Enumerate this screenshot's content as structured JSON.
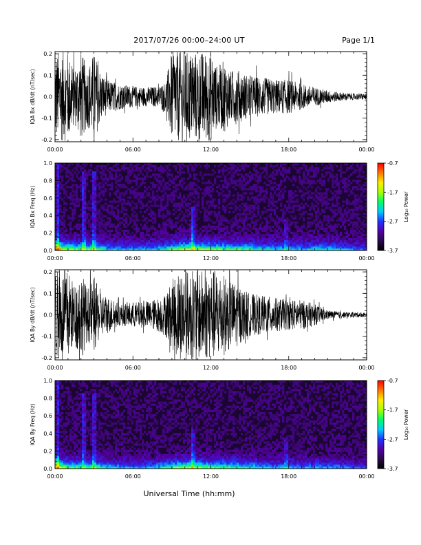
{
  "header": {
    "title": "2017/07/26  00:00–24:00 UT",
    "page": "Page 1/1"
  },
  "footer": {
    "xlabel": "Universal Time (hh:mm)"
  },
  "colors": {
    "background": "#ffffff",
    "trace": "#000000",
    "spec_background": "#1a0630"
  },
  "colorbar": {
    "label": "Log₁₀ Power",
    "ticks": [
      "-0.7",
      "-1.7",
      "-2.7",
      "-3.7"
    ],
    "range": [
      -3.7,
      -0.7
    ],
    "colors": [
      "#000000",
      "#2a0a4a",
      "#5500aa",
      "#2233ff",
      "#00ccff",
      "#00ff66",
      "#aaff00",
      "#ffee00",
      "#ff7700",
      "#ff0000"
    ]
  },
  "chart_data": [
    {
      "type": "line",
      "title": "",
      "xlabel": "",
      "ylabel": "IQA Bx dB/dt (nT/sec)",
      "xlim": [
        0,
        24
      ],
      "ylim": [
        -0.21,
        0.21
      ],
      "xticks": [
        "00:00",
        "06:00",
        "12:00",
        "18:00",
        "00:00"
      ],
      "yticks": [
        "0.2",
        "0.1",
        "0.0",
        "-0.1",
        "-0.2"
      ],
      "envelope": {
        "hours": [
          0,
          0.5,
          1,
          1.5,
          2,
          2.5,
          3,
          3.5,
          4,
          5,
          6,
          7,
          8,
          8.5,
          9,
          9.5,
          10,
          10.5,
          11,
          11.5,
          12,
          12.5,
          13,
          13.5,
          14,
          14.5,
          15,
          16,
          17,
          18,
          19,
          20,
          21,
          22,
          23,
          24
        ],
        "amplitude": [
          0.21,
          0.21,
          0.21,
          0.13,
          0.21,
          0.14,
          0.21,
          0.12,
          0.08,
          0.06,
          0.05,
          0.045,
          0.05,
          0.07,
          0.21,
          0.21,
          0.21,
          0.21,
          0.21,
          0.21,
          0.21,
          0.14,
          0.17,
          0.12,
          0.13,
          0.11,
          0.1,
          0.09,
          0.08,
          0.08,
          0.06,
          0.045,
          0.03,
          0.02,
          0.015,
          0.015
        ]
      }
    },
    {
      "type": "heatmap",
      "title": "",
      "xlabel": "",
      "ylabel": "IQA Bx Freq (Hz)",
      "xlim": [
        0,
        24
      ],
      "ylim": [
        0,
        1.0
      ],
      "xticks": [
        "00:00",
        "06:00",
        "12:00",
        "18:00",
        "00:00"
      ],
      "yticks": [
        "1.0",
        "0.8",
        "0.6",
        "0.4",
        "0.2",
        "0.0"
      ],
      "zlabel": "Log₁₀ Power",
      "zlim": [
        -3.7,
        -0.7
      ],
      "low_freq_activity": {
        "hours": [
          0,
          1,
          2,
          3,
          4,
          5,
          6,
          7,
          8,
          9,
          10,
          11,
          12,
          13,
          14,
          15,
          16,
          17,
          18,
          19,
          20,
          21,
          22,
          23,
          24
        ],
        "level": [
          0.9,
          0.6,
          0.55,
          0.6,
          0.4,
          0.35,
          0.35,
          0.35,
          0.4,
          0.55,
          0.7,
          0.65,
          0.6,
          0.55,
          0.55,
          0.5,
          0.45,
          0.4,
          0.4,
          0.35,
          0.4,
          0.45,
          0.35,
          0.3,
          0.25
        ]
      },
      "features": [
        {
          "hour": 0.2,
          "freq_max": 1.0,
          "label": "broadband"
        },
        {
          "hour": 2.2,
          "freq_max": 0.9,
          "label": "broadband"
        },
        {
          "hour": 3.0,
          "freq_max": 0.9,
          "label": "broadband"
        },
        {
          "hour": 10.6,
          "freq_max": 0.5,
          "label": "broadband"
        },
        {
          "hour": 17.8,
          "freq_max": 0.35,
          "label": "narrowband"
        }
      ]
    },
    {
      "type": "line",
      "title": "",
      "xlabel": "",
      "ylabel": "IQA By dB/dt (nT/sec)",
      "xlim": [
        0,
        24
      ],
      "ylim": [
        -0.21,
        0.21
      ],
      "xticks": [
        "00:00",
        "06:00",
        "12:00",
        "18:00",
        "00:00"
      ],
      "yticks": [
        "0.2",
        "0.1",
        "0.0",
        "-0.1",
        "-0.2"
      ],
      "envelope": {
        "hours": [
          0,
          0.5,
          1,
          1.5,
          2,
          2.5,
          3,
          3.5,
          4,
          5,
          6,
          7,
          8,
          8.5,
          9,
          9.5,
          10,
          10.5,
          11,
          11.5,
          12,
          12.5,
          13,
          13.5,
          14,
          14.5,
          15,
          16,
          17,
          18,
          19,
          20,
          21,
          22,
          23,
          24
        ],
        "amplitude": [
          0.21,
          0.21,
          0.21,
          0.14,
          0.21,
          0.12,
          0.18,
          0.1,
          0.09,
          0.05,
          0.06,
          0.06,
          0.08,
          0.1,
          0.16,
          0.21,
          0.21,
          0.21,
          0.21,
          0.21,
          0.21,
          0.21,
          0.19,
          0.16,
          0.15,
          0.12,
          0.1,
          0.09,
          0.08,
          0.07,
          0.07,
          0.05,
          0.02,
          0.015,
          0.012,
          0.012
        ]
      }
    },
    {
      "type": "heatmap",
      "title": "",
      "xlabel": "Universal Time (hh:mm)",
      "ylabel": "IQA By Freq (Hz)",
      "xlim": [
        0,
        24
      ],
      "ylim": [
        0,
        1.0
      ],
      "xticks": [
        "00:00",
        "06:00",
        "12:00",
        "18:00",
        "00:00"
      ],
      "yticks": [
        "1.0",
        "0.8",
        "0.6",
        "0.4",
        "0.2",
        "0.0"
      ],
      "zlabel": "Log₁₀ Power",
      "zlim": [
        -3.7,
        -0.7
      ],
      "low_freq_activity": {
        "hours": [
          0,
          1,
          2,
          3,
          4,
          5,
          6,
          7,
          8,
          9,
          10,
          11,
          12,
          13,
          14,
          15,
          16,
          17,
          18,
          19,
          20,
          21,
          22,
          23,
          24
        ],
        "level": [
          0.85,
          0.55,
          0.5,
          0.55,
          0.4,
          0.35,
          0.35,
          0.35,
          0.4,
          0.55,
          0.65,
          0.6,
          0.55,
          0.55,
          0.5,
          0.45,
          0.4,
          0.35,
          0.35,
          0.3,
          0.35,
          0.35,
          0.3,
          0.25,
          0.2
        ]
      },
      "features": [
        {
          "hour": 0.2,
          "freq_max": 1.0,
          "label": "broadband"
        },
        {
          "hour": 2.2,
          "freq_max": 0.85,
          "label": "broadband"
        },
        {
          "hour": 3.0,
          "freq_max": 0.85,
          "label": "broadband"
        },
        {
          "hour": 10.6,
          "freq_max": 0.45,
          "label": "broadband"
        },
        {
          "hour": 17.8,
          "freq_max": 0.35,
          "label": "narrowband"
        }
      ]
    }
  ]
}
